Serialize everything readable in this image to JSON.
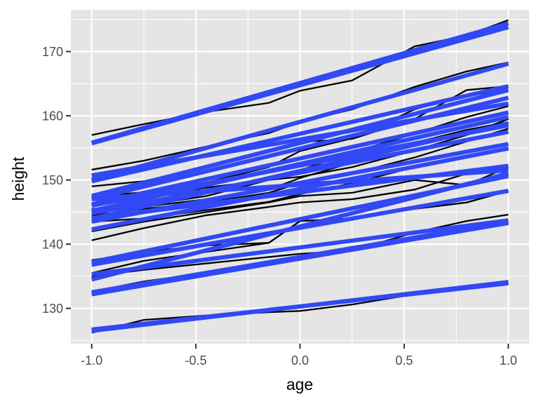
{
  "chart_data": {
    "type": "line",
    "title": "",
    "xlabel": "age",
    "ylabel": "height",
    "xlim": [
      -1.1,
      1.1
    ],
    "ylim": [
      124.5,
      176.5
    ],
    "xticks": [
      -1.0,
      -0.5,
      0.0,
      0.5,
      1.0
    ],
    "xtick_labels": [
      "-1.0",
      "-0.5",
      "0.0",
      "0.5",
      "1.0"
    ],
    "yticks": [
      130,
      140,
      150,
      160,
      170
    ],
    "ytick_labels": [
      "130",
      "140",
      "150",
      "160",
      "170"
    ],
    "grid": true,
    "legend": "none",
    "colors": {
      "panel": "#e5e5e5",
      "grid_major": "#ffffff",
      "observed": "#000000",
      "fitted": "#3049f5",
      "tick": "#4d4d4d"
    },
    "age": [
      -1.0,
      -0.75,
      -0.45,
      -0.15,
      0.0,
      0.25,
      0.55,
      0.8,
      1.0
    ],
    "observed_series": [
      [
        157.0,
        158.7,
        160.6,
        162.0,
        163.9,
        165.5,
        170.8,
        172.5,
        174.9
      ],
      [
        151.6,
        153.0,
        155.2,
        157.3,
        159.0,
        161.0,
        164.5,
        166.9,
        168.3
      ],
      [
        149.0,
        149.8,
        152.0,
        154.5,
        155.9,
        156.4,
        159.5,
        164.0,
        164.6
      ],
      [
        147.4,
        148.1,
        149.6,
        152.0,
        154.5,
        156.5,
        161.0,
        163.2,
        163.8
      ],
      [
        146.0,
        147.2,
        148.8,
        150.0,
        151.5,
        154.3,
        157.2,
        159.8,
        161.5
      ],
      [
        145.5,
        146.0,
        147.5,
        150.0,
        150.5,
        152.0,
        154.6,
        157.0,
        159.5
      ],
      [
        145.0,
        145.8,
        147.0,
        148.5,
        150.3,
        152.7,
        155.8,
        157.8,
        159.0
      ],
      [
        144.5,
        145.5,
        146.5,
        148.0,
        149.5,
        151.0,
        153.5,
        156.0,
        158.0
      ],
      [
        143.5,
        144.0,
        145.3,
        146.6,
        147.8,
        149.5,
        152.0,
        153.7,
        155.0
      ],
      [
        142.0,
        143.5,
        145.0,
        146.5,
        147.5,
        148.0,
        150.0,
        149.2,
        152.0
      ],
      [
        140.6,
        142.5,
        144.5,
        145.8,
        146.5,
        147.0,
        148.5,
        151.0,
        151.8
      ],
      [
        137.5,
        138.8,
        139.8,
        140.2,
        143.6,
        144.0,
        145.5,
        146.5,
        148.3
      ],
      [
        135.5,
        137.4,
        138.8,
        140.2,
        143.6,
        144.0,
        145.5,
        146.5,
        148.3
      ],
      [
        135.0,
        136.0,
        137.0,
        138.0,
        138.5,
        139.0,
        141.8,
        143.6,
        144.6
      ],
      [
        132.6,
        134.2,
        135.5,
        136.8,
        137.6,
        139.0,
        141.0,
        142.5,
        143.2
      ],
      [
        126.2,
        128.2,
        128.9,
        129.4,
        129.6,
        130.6,
        132.2,
        133.3,
        134.1
      ]
    ],
    "fitted_series": [
      [
        155.7,
        173.8
      ],
      [
        155.8,
        174.4
      ],
      [
        150.0,
        168.1
      ],
      [
        150.7,
        161.9
      ],
      [
        149.8,
        164.6
      ],
      [
        147.5,
        164.0
      ],
      [
        147.0,
        162.8
      ],
      [
        146.2,
        160.5
      ],
      [
        146.0,
        158.5
      ],
      [
        145.2,
        159.8
      ],
      [
        144.8,
        157.5
      ],
      [
        144.0,
        158.8
      ],
      [
        143.5,
        155.6
      ],
      [
        142.3,
        154.9
      ],
      [
        147.0,
        151.5
      ],
      [
        144.0,
        152.2
      ],
      [
        137.2,
        150.6
      ],
      [
        134.5,
        151.0
      ],
      [
        136.8,
        148.3
      ],
      [
        135.3,
        143.7
      ],
      [
        132.5,
        143.5
      ],
      [
        132.2,
        143.3
      ],
      [
        126.5,
        134.1
      ],
      [
        126.7,
        133.9
      ]
    ]
  }
}
